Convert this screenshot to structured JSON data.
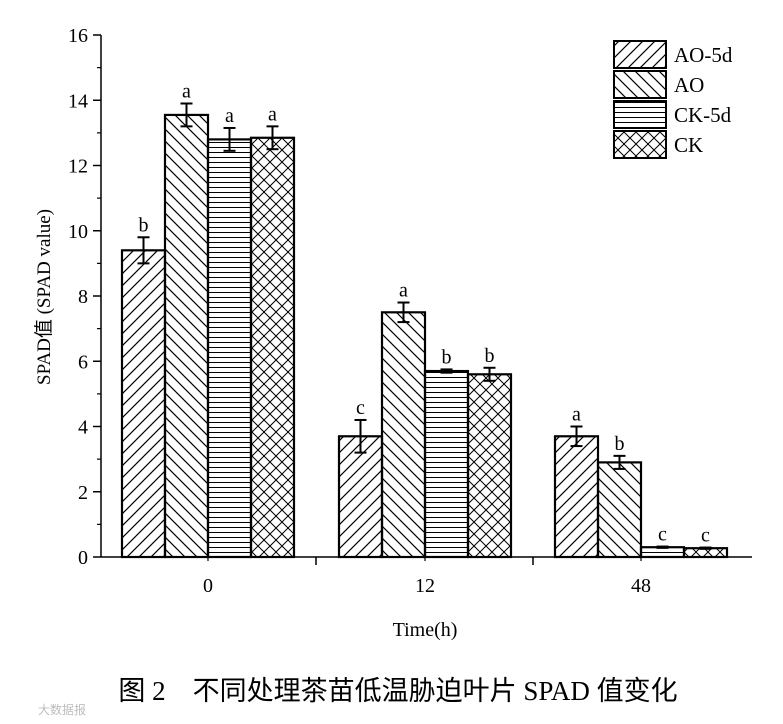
{
  "chart_data": {
    "type": "bar",
    "xlabel": "Time(h)",
    "ylabel": "SPAD值 (SPAD value)",
    "ylim": [
      0,
      16
    ],
    "yticks": [
      0,
      2,
      4,
      6,
      8,
      10,
      12,
      14,
      16
    ],
    "categories": [
      "0",
      "12",
      "48"
    ],
    "legend_position": "top-right",
    "series": [
      {
        "name": "AO-5d",
        "pattern": "diag-right",
        "values": [
          9.4,
          3.7,
          3.7
        ],
        "errors": [
          0.4,
          0.5,
          0.3
        ],
        "letters": [
          "b",
          "c",
          "a"
        ]
      },
      {
        "name": "AO",
        "pattern": "diag-left",
        "values": [
          13.55,
          7.5,
          2.9
        ],
        "errors": [
          0.35,
          0.3,
          0.2
        ],
        "letters": [
          "a",
          "a",
          "b"
        ]
      },
      {
        "name": "CK-5d",
        "pattern": "horizontal",
        "values": [
          12.8,
          5.7,
          0.3
        ],
        "errors": [
          0.35,
          0.05,
          0.02
        ],
        "letters": [
          "a",
          "b",
          "c"
        ]
      },
      {
        "name": "CK",
        "pattern": "crosshatch",
        "values": [
          12.85,
          5.6,
          0.27
        ],
        "errors": [
          0.35,
          0.2,
          0.02
        ],
        "letters": [
          "a",
          "b",
          "c"
        ]
      }
    ]
  },
  "caption": "图 2　不同处理茶苗低温胁迫叶片 SPAD 值变化",
  "watermark": "大数据报"
}
